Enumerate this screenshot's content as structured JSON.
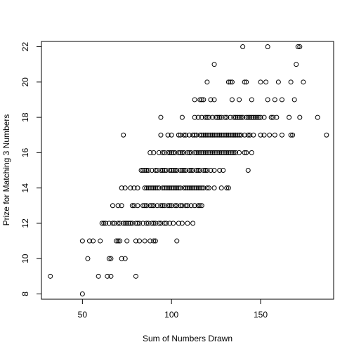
{
  "chart_data": {
    "type": "scatter",
    "title": "",
    "xlabel": "Sum of Numbers Drawn",
    "ylabel": "Prize for Matching 3 Numbers",
    "xlim": [
      27,
      191
    ],
    "ylim": [
      7.7,
      22.3
    ],
    "x_ticks": [
      50,
      100,
      150
    ],
    "y_ticks": [
      8,
      10,
      12,
      14,
      16,
      18,
      20,
      22
    ],
    "grid": false,
    "legend": "none",
    "marker": "open-circle",
    "points": [
      [
        32,
        9
      ],
      [
        50,
        8
      ],
      [
        50,
        11
      ],
      [
        53,
        10
      ],
      [
        54,
        11
      ],
      [
        56,
        11
      ],
      [
        59,
        9
      ],
      [
        60,
        11
      ],
      [
        61,
        12
      ],
      [
        62,
        12
      ],
      [
        63,
        12
      ],
      [
        64,
        9
      ],
      [
        65,
        10
      ],
      [
        65,
        12
      ],
      [
        66,
        9
      ],
      [
        66,
        10
      ],
      [
        67,
        12
      ],
      [
        67,
        13
      ],
      [
        68,
        12
      ],
      [
        69,
        11
      ],
      [
        70,
        11
      ],
      [
        70,
        12
      ],
      [
        70,
        13
      ],
      [
        71,
        11
      ],
      [
        71,
        12
      ],
      [
        72,
        13
      ],
      [
        72,
        10
      ],
      [
        72,
        14
      ],
      [
        73,
        12
      ],
      [
        73,
        17
      ],
      [
        74,
        12
      ],
      [
        74,
        14
      ],
      [
        74,
        10
      ],
      [
        75,
        11
      ],
      [
        75,
        12
      ],
      [
        76,
        12
      ],
      [
        77,
        12
      ],
      [
        77,
        14
      ],
      [
        78,
        12
      ],
      [
        78,
        13
      ],
      [
        79,
        13
      ],
      [
        79,
        14
      ],
      [
        80,
        9
      ],
      [
        80,
        11
      ],
      [
        80,
        12
      ],
      [
        81,
        12
      ],
      [
        81,
        13
      ],
      [
        81,
        14
      ],
      [
        82,
        11
      ],
      [
        82,
        12
      ],
      [
        83,
        15
      ],
      [
        84,
        12
      ],
      [
        84,
        13
      ],
      [
        84,
        15
      ],
      [
        85,
        11
      ],
      [
        85,
        13
      ],
      [
        85,
        14
      ],
      [
        85,
        15
      ],
      [
        86,
        12
      ],
      [
        86,
        13
      ],
      [
        86,
        14
      ],
      [
        86,
        15
      ],
      [
        87,
        12
      ],
      [
        87,
        14
      ],
      [
        87,
        15
      ],
      [
        88,
        11
      ],
      [
        88,
        13
      ],
      [
        88,
        14
      ],
      [
        88,
        16
      ],
      [
        89,
        12
      ],
      [
        89,
        13
      ],
      [
        89,
        14
      ],
      [
        89,
        15
      ],
      [
        90,
        11
      ],
      [
        90,
        12
      ],
      [
        90,
        13
      ],
      [
        90,
        14
      ],
      [
        90,
        16
      ],
      [
        91,
        11
      ],
      [
        91,
        12
      ],
      [
        91,
        14
      ],
      [
        91,
        15
      ],
      [
        92,
        13
      ],
      [
        92,
        14
      ],
      [
        92,
        15
      ],
      [
        93,
        12
      ],
      [
        93,
        14
      ],
      [
        93,
        16
      ],
      [
        94,
        12
      ],
      [
        94,
        13
      ],
      [
        94,
        15
      ],
      [
        94,
        17
      ],
      [
        94,
        18
      ],
      [
        95,
        13
      ],
      [
        95,
        14
      ],
      [
        95,
        15
      ],
      [
        95,
        16
      ],
      [
        96,
        12
      ],
      [
        96,
        13
      ],
      [
        96,
        14
      ],
      [
        96,
        15
      ],
      [
        96,
        16
      ],
      [
        97,
        12
      ],
      [
        97,
        14
      ],
      [
        97,
        15
      ],
      [
        98,
        13
      ],
      [
        98,
        14
      ],
      [
        98,
        16
      ],
      [
        98,
        17
      ],
      [
        99,
        12
      ],
      [
        99,
        13
      ],
      [
        99,
        14
      ],
      [
        99,
        15
      ],
      [
        99,
        16
      ],
      [
        100,
        13
      ],
      [
        100,
        14
      ],
      [
        100,
        15
      ],
      [
        100,
        16
      ],
      [
        100,
        17
      ],
      [
        101,
        12
      ],
      [
        101,
        14
      ],
      [
        101,
        15
      ],
      [
        101,
        16
      ],
      [
        102,
        13
      ],
      [
        102,
        14
      ],
      [
        102,
        15
      ],
      [
        102,
        16
      ],
      [
        103,
        11
      ],
      [
        103,
        13
      ],
      [
        103,
        14
      ],
      [
        103,
        15
      ],
      [
        104,
        12
      ],
      [
        104,
        14
      ],
      [
        104,
        16
      ],
      [
        104,
        17
      ],
      [
        105,
        13
      ],
      [
        105,
        14
      ],
      [
        105,
        15
      ],
      [
        105,
        16
      ],
      [
        105,
        17
      ],
      [
        106,
        12
      ],
      [
        106,
        13
      ],
      [
        106,
        15
      ],
      [
        106,
        16
      ],
      [
        106,
        18
      ],
      [
        107,
        14
      ],
      [
        107,
        15
      ],
      [
        107,
        16
      ],
      [
        107,
        17
      ],
      [
        108,
        13
      ],
      [
        108,
        14
      ],
      [
        108,
        15
      ],
      [
        108,
        17
      ],
      [
        109,
        12
      ],
      [
        109,
        13
      ],
      [
        109,
        14
      ],
      [
        109,
        16
      ],
      [
        110,
        14
      ],
      [
        110,
        15
      ],
      [
        110,
        16
      ],
      [
        110,
        17
      ],
      [
        111,
        13
      ],
      [
        111,
        14
      ],
      [
        111,
        15
      ],
      [
        111,
        16
      ],
      [
        112,
        12
      ],
      [
        112,
        14
      ],
      [
        112,
        15
      ],
      [
        112,
        17
      ],
      [
        113,
        13
      ],
      [
        113,
        14
      ],
      [
        113,
        16
      ],
      [
        113,
        17
      ],
      [
        113,
        18
      ],
      [
        113,
        19
      ],
      [
        114,
        14
      ],
      [
        114,
        15
      ],
      [
        114,
        16
      ],
      [
        114,
        17
      ],
      [
        115,
        13
      ],
      [
        115,
        14
      ],
      [
        115,
        15
      ],
      [
        115,
        16
      ],
      [
        115,
        18
      ],
      [
        116,
        13
      ],
      [
        116,
        14
      ],
      [
        116,
        15
      ],
      [
        116,
        16
      ],
      [
        116,
        17
      ],
      [
        116,
        19
      ],
      [
        117,
        13
      ],
      [
        117,
        14
      ],
      [
        117,
        16
      ],
      [
        117,
        17
      ],
      [
        117,
        18
      ],
      [
        117,
        19
      ],
      [
        118,
        14
      ],
      [
        118,
        15
      ],
      [
        118,
        16
      ],
      [
        118,
        17
      ],
      [
        118,
        19
      ],
      [
        119,
        15
      ],
      [
        119,
        16
      ],
      [
        119,
        17
      ],
      [
        119,
        18
      ],
      [
        120,
        14
      ],
      [
        120,
        15
      ],
      [
        120,
        16
      ],
      [
        120,
        17
      ],
      [
        120,
        18
      ],
      [
        120,
        20
      ],
      [
        121,
        14
      ],
      [
        121,
        16
      ],
      [
        121,
        17
      ],
      [
        121,
        18
      ],
      [
        122,
        15
      ],
      [
        122,
        16
      ],
      [
        122,
        17
      ],
      [
        122,
        19
      ],
      [
        123,
        16
      ],
      [
        123,
        17
      ],
      [
        123,
        18
      ],
      [
        124,
        14
      ],
      [
        124,
        15
      ],
      [
        124,
        16
      ],
      [
        124,
        17
      ],
      [
        124,
        19
      ],
      [
        124,
        21
      ],
      [
        125,
        16
      ],
      [
        125,
        17
      ],
      [
        125,
        18
      ],
      [
        126,
        16
      ],
      [
        126,
        17
      ],
      [
        126,
        18
      ],
      [
        127,
        15
      ],
      [
        127,
        16
      ],
      [
        127,
        17
      ],
      [
        127,
        18
      ],
      [
        128,
        14
      ],
      [
        128,
        16
      ],
      [
        128,
        17
      ],
      [
        128,
        18
      ],
      [
        129,
        15
      ],
      [
        129,
        16
      ],
      [
        129,
        17
      ],
      [
        130,
        16
      ],
      [
        130,
        17
      ],
      [
        130,
        18
      ],
      [
        131,
        14
      ],
      [
        131,
        16
      ],
      [
        131,
        17
      ],
      [
        131,
        18
      ],
      [
        132,
        14
      ],
      [
        132,
        16
      ],
      [
        132,
        17
      ],
      [
        132,
        20
      ],
      [
        133,
        16
      ],
      [
        133,
        17
      ],
      [
        133,
        18
      ],
      [
        133,
        20
      ],
      [
        134,
        16
      ],
      [
        134,
        17
      ],
      [
        134,
        19
      ],
      [
        134,
        20
      ],
      [
        135,
        16
      ],
      [
        135,
        17
      ],
      [
        135,
        18
      ],
      [
        136,
        16
      ],
      [
        136,
        17
      ],
      [
        136,
        18
      ],
      [
        137,
        17
      ],
      [
        137,
        18
      ],
      [
        138,
        16
      ],
      [
        138,
        17
      ],
      [
        138,
        18
      ],
      [
        138,
        19
      ],
      [
        139,
        17
      ],
      [
        139,
        18
      ],
      [
        140,
        18
      ],
      [
        140,
        22
      ],
      [
        141,
        16
      ],
      [
        141,
        17
      ],
      [
        141,
        20
      ],
      [
        142,
        16
      ],
      [
        142,
        18
      ],
      [
        142,
        20
      ],
      [
        143,
        15
      ],
      [
        143,
        17
      ],
      [
        143,
        18
      ],
      [
        144,
        17
      ],
      [
        144,
        18
      ],
      [
        145,
        16
      ],
      [
        145,
        18
      ],
      [
        145,
        19
      ],
      [
        146,
        17
      ],
      [
        146,
        18
      ],
      [
        147,
        18
      ],
      [
        148,
        18
      ],
      [
        149,
        18
      ],
      [
        150,
        17
      ],
      [
        150,
        18
      ],
      [
        150,
        20
      ],
      [
        152,
        17
      ],
      [
        152,
        18
      ],
      [
        153,
        20
      ],
      [
        154,
        19
      ],
      [
        154,
        22
      ],
      [
        155,
        17
      ],
      [
        156,
        18
      ],
      [
        157,
        18
      ],
      [
        158,
        17
      ],
      [
        158,
        19
      ],
      [
        159,
        18
      ],
      [
        160,
        20
      ],
      [
        162,
        17
      ],
      [
        162,
        19
      ],
      [
        166,
        18
      ],
      [
        167,
        17
      ],
      [
        167,
        20
      ],
      [
        168,
        17
      ],
      [
        169,
        19
      ],
      [
        170,
        21
      ],
      [
        171,
        22
      ],
      [
        172,
        18
      ],
      [
        172,
        22
      ],
      [
        174,
        20
      ],
      [
        182,
        18
      ],
      [
        187,
        17
      ]
    ]
  }
}
